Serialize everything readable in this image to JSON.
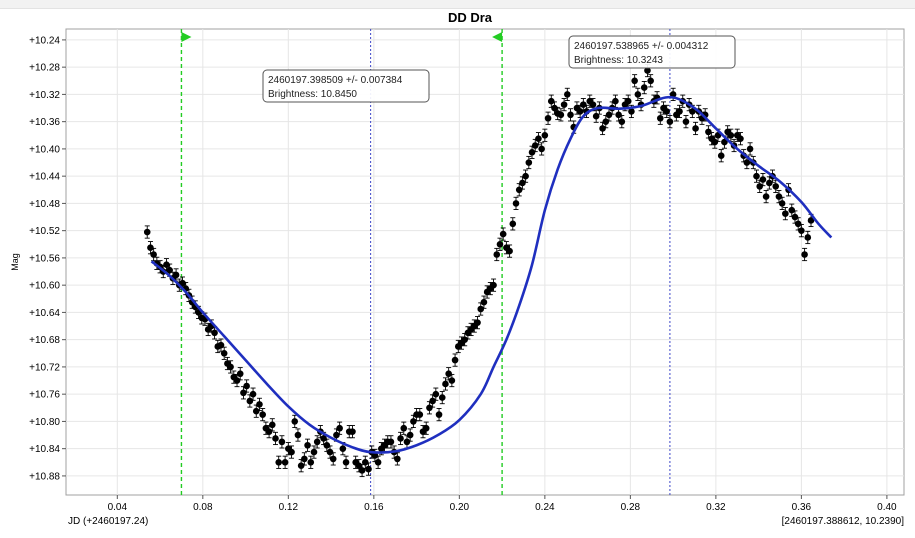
{
  "window": {
    "title": "DD Dra"
  },
  "chart_data": {
    "type": "scatter",
    "title": "DD Dra",
    "ylabel": "Mag",
    "xlabel": "JD (+2460197.24)",
    "cursor_readout": "[2460197.388612, 10.2390]",
    "xlim": [
      0.016,
      0.408
    ],
    "ylim": [
      10.908,
      10.224
    ],
    "y_inverted": true,
    "grid": true,
    "x_ticks": [
      "0.04",
      "0.08",
      "0.12",
      "0.16",
      "0.20",
      "0.24",
      "0.28",
      "0.32",
      "0.36",
      "0.40"
    ],
    "y_ticks": [
      "+10.24",
      "+10.28",
      "+10.32",
      "+10.36",
      "+10.40",
      "+10.44",
      "+10.48",
      "+10.52",
      "+10.56",
      "+10.60",
      "+10.64",
      "+10.68",
      "+10.72",
      "+10.76",
      "+10.80",
      "+10.84",
      "+10.88"
    ],
    "colors": {
      "points": "#000000",
      "fit": "#1f2fbf",
      "extrema_lines": "#3b45c8",
      "window_lines": "#22cc22"
    },
    "window_markers_x": [
      0.07,
      0.22
    ],
    "extrema_lines_x": [
      0.1585,
      0.2985
    ],
    "annotations": [
      {
        "line1": "2460197.398509 +/- 0.007384",
        "line2": "Brightness: 10.8450",
        "x": 0.1585,
        "y": 10.845
      },
      {
        "line1": "2460197.538965 +/- 0.004312",
        "line2": "Brightness: 10.3243",
        "x": 0.2985,
        "y": 10.3243
      }
    ],
    "fit_curve": [
      [
        0.056,
        10.565
      ],
      [
        0.064,
        10.585
      ],
      [
        0.072,
        10.61
      ],
      [
        0.08,
        10.64
      ],
      [
        0.09,
        10.675
      ],
      [
        0.1,
        10.71
      ],
      [
        0.11,
        10.745
      ],
      [
        0.12,
        10.778
      ],
      [
        0.13,
        10.805
      ],
      [
        0.14,
        10.824
      ],
      [
        0.15,
        10.838
      ],
      [
        0.1585,
        10.845
      ],
      [
        0.17,
        10.844
      ],
      [
        0.18,
        10.835
      ],
      [
        0.19,
        10.82
      ],
      [
        0.2,
        10.798
      ],
      [
        0.21,
        10.76
      ],
      [
        0.216,
        10.72
      ],
      [
        0.222,
        10.68
      ],
      [
        0.228,
        10.63
      ],
      [
        0.234,
        10.57
      ],
      [
        0.24,
        10.49
      ],
      [
        0.246,
        10.43
      ],
      [
        0.252,
        10.385
      ],
      [
        0.258,
        10.352
      ],
      [
        0.265,
        10.34
      ],
      [
        0.275,
        10.341
      ],
      [
        0.285,
        10.337
      ],
      [
        0.2985,
        10.324
      ],
      [
        0.31,
        10.34
      ],
      [
        0.32,
        10.37
      ],
      [
        0.33,
        10.4
      ],
      [
        0.34,
        10.425
      ],
      [
        0.35,
        10.448
      ],
      [
        0.36,
        10.478
      ],
      [
        0.368,
        10.51
      ],
      [
        0.374,
        10.53
      ]
    ],
    "series": [
      {
        "name": "",
        "err": 0.009,
        "x_start": 0.054,
        "x_step": 0.0015,
        "y": [
          10.522,
          10.545,
          10.555,
          10.568,
          10.573,
          10.58,
          10.57,
          10.578,
          10.59,
          10.585,
          10.6,
          10.597,
          10.605,
          10.615,
          10.625,
          10.632,
          10.64,
          10.648,
          10.65,
          10.665,
          10.66,
          10.67,
          10.69,
          10.688,
          10.7,
          10.715,
          10.72,
          10.735,
          10.74,
          10.73,
          10.758,
          10.748,
          10.77,
          10.76,
          10.785,
          10.775,
          10.79,
          10.81,
          10.815,
          10.805,
          10.825,
          10.86,
          10.83,
          10.86,
          10.84,
          10.845,
          10.8,
          10.82,
          10.865,
          10.855,
          10.835,
          10.86,
          10.845,
          10.83,
          10.815,
          10.825,
          10.835,
          10.845,
          10.855,
          10.82,
          10.81,
          10.84,
          10.86,
          10.815,
          10.815,
          10.86,
          10.865,
          10.872,
          10.86,
          10.87,
          10.845,
          10.85,
          10.86,
          10.84,
          10.835,
          10.83,
          10.83,
          10.845,
          10.855,
          10.825,
          10.81,
          10.83,
          10.82,
          10.8,
          10.79,
          10.79,
          10.815,
          10.81,
          10.78,
          10.77,
          10.76,
          10.79,
          10.765,
          10.745,
          10.73,
          10.74,
          10.71,
          10.69,
          10.685,
          10.68,
          10.67,
          10.665,
          10.66,
          10.655,
          10.635,
          10.625,
          10.61,
          10.605,
          10.6,
          10.555,
          10.54,
          10.525,
          10.545,
          10.55,
          10.51,
          10.48,
          10.46,
          10.45,
          10.44,
          10.42,
          10.405,
          10.395,
          10.385,
          10.4,
          10.38,
          10.355,
          10.33,
          10.34,
          10.348,
          10.35,
          10.335,
          10.32,
          10.35,
          10.368,
          10.34,
          10.345,
          10.335,
          10.345,
          10.33,
          10.335,
          10.352,
          10.34,
          10.37,
          10.36,
          10.35,
          10.34,
          10.33,
          10.35,
          10.36,
          10.335,
          10.33,
          10.345,
          10.3,
          10.32,
          10.335,
          10.31,
          10.285,
          10.3,
          10.33,
          10.325,
          10.355,
          10.34,
          10.345,
          10.36,
          10.32,
          10.35,
          10.345,
          10.33,
          10.36,
          10.335,
          10.345,
          10.37,
          10.345,
          10.355,
          10.35,
          10.375,
          10.385,
          10.39,
          10.38,
          10.41,
          10.39,
          10.375,
          10.38,
          10.395,
          10.38,
          10.385,
          10.41,
          10.42,
          10.4,
          10.42,
          10.44,
          10.455,
          10.445,
          10.47,
          10.45,
          10.44,
          10.455,
          10.47,
          10.48,
          10.495,
          10.46,
          10.49,
          10.5,
          10.51,
          10.52,
          10.555,
          10.53,
          10.505
        ]
      }
    ]
  }
}
